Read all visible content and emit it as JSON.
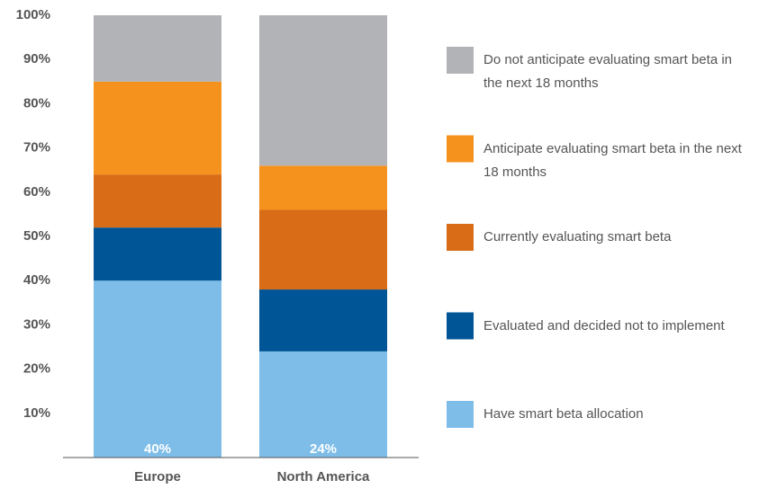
{
  "chart_data": {
    "type": "stacked-bar",
    "categories": [
      "Europe",
      "North America"
    ],
    "series": [
      {
        "name": "Have smart beta allocation",
        "color": "#7dbde8",
        "values": [
          40,
          24
        ],
        "value_labels": [
          "40%",
          "24%"
        ]
      },
      {
        "name": "Evaluated and decided not to implement",
        "color": "#005596",
        "values": [
          12,
          14
        ]
      },
      {
        "name": "Currently evaluating smart beta",
        "color": "#d86c17",
        "values": [
          12,
          18
        ]
      },
      {
        "name": "Anticipate evaluating smart beta in the next 18 months",
        "color": "#f5921e",
        "values": [
          21,
          10
        ]
      },
      {
        "name": "Do not anticipate evaluating smart beta in the next 18 months",
        "color": "#b1b3b6",
        "values": [
          15,
          34
        ]
      }
    ],
    "ylim": [
      0,
      100
    ],
    "yticks": [
      {
        "value": 10,
        "label": "10%"
      },
      {
        "value": 20,
        "label": "20%"
      },
      {
        "value": 30,
        "label": "30%"
      },
      {
        "value": 40,
        "label": "40%"
      },
      {
        "value": 50,
        "label": "50%"
      },
      {
        "value": 60,
        "label": "60%"
      },
      {
        "value": 70,
        "label": "70%"
      },
      {
        "value": 80,
        "label": "80%"
      },
      {
        "value": 90,
        "label": "90%"
      },
      {
        "value": 100,
        "label": "100%"
      }
    ],
    "legend": "right"
  }
}
